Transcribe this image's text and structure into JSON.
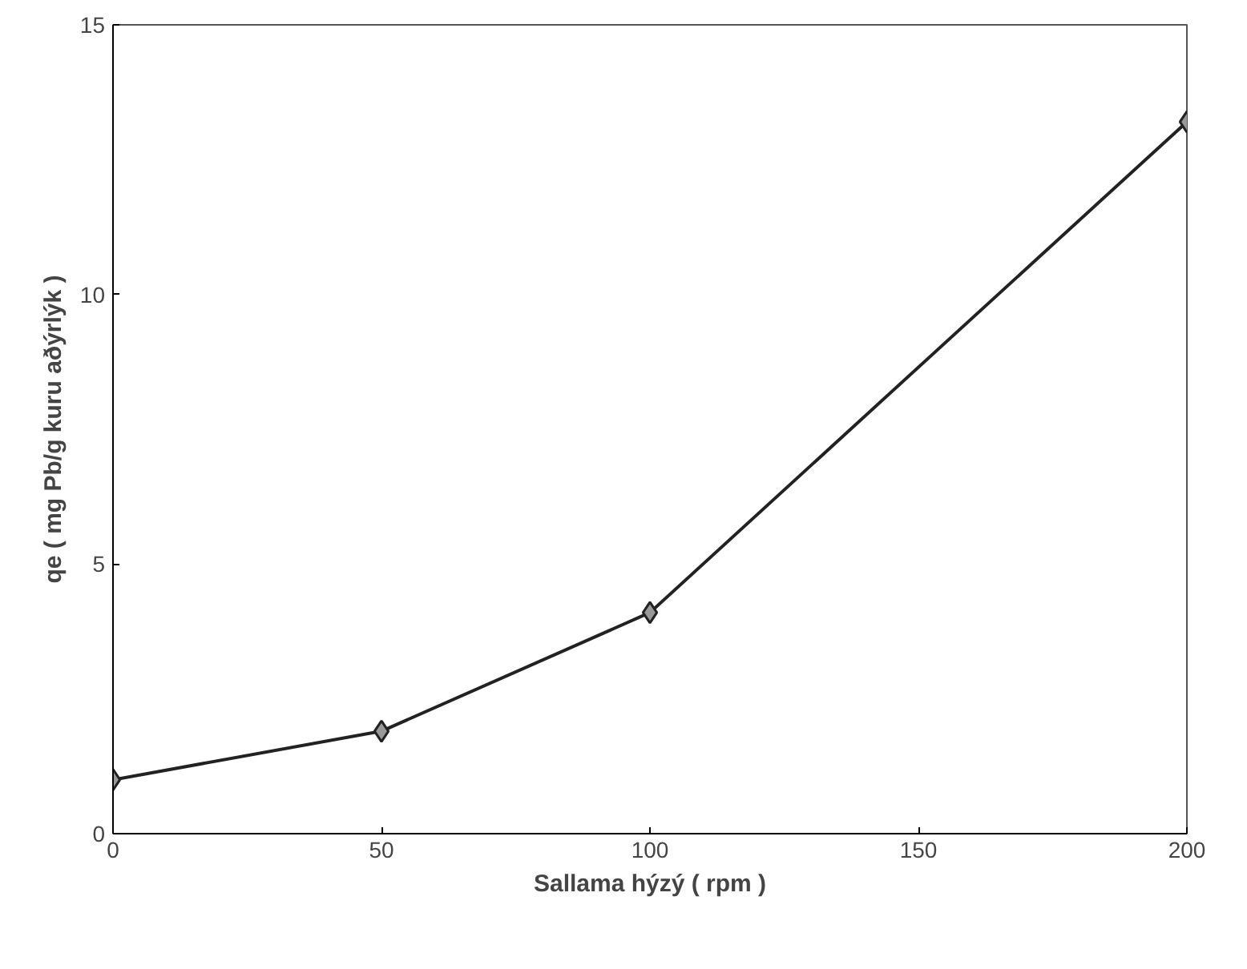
{
  "chart_data": {
    "type": "line",
    "xlabel": "Sallama hýzý ( rpm )",
    "ylabel": "qe ( mg Pb/g kuru aðýrlýk )",
    "x": [
      0,
      50,
      100,
      200
    ],
    "series": [
      {
        "color": "#222222",
        "values": [
          1.0,
          1.9,
          4.1,
          13.2
        ]
      }
    ],
    "xlim": [
      0,
      200
    ],
    "ylim": [
      0,
      15
    ],
    "xticks": [
      0,
      50,
      100,
      150,
      200
    ],
    "yticks": [
      0,
      5,
      10,
      15
    ],
    "grid": false,
    "marker": "diamond",
    "line_style": "solid"
  }
}
